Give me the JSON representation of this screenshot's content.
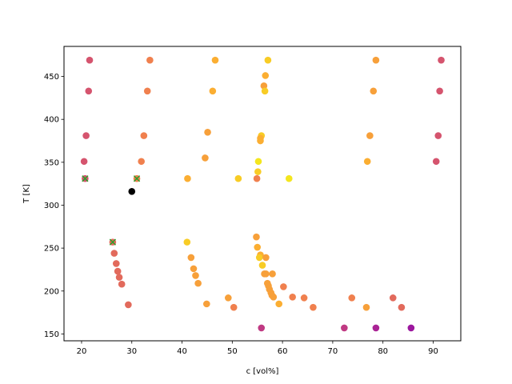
{
  "chart_data": {
    "type": "scatter",
    "title": "",
    "xlabel": "c [vol%]",
    "ylabel": "T [K]",
    "xlim": [
      16.5,
      95.5
    ],
    "ylim": [
      142,
      485
    ],
    "xticks": [
      20,
      30,
      40,
      50,
      60,
      70,
      80,
      90
    ],
    "yticks": [
      150,
      200,
      250,
      300,
      350,
      400,
      450
    ],
    "grid": false,
    "legend": "none",
    "colormap": "plasma",
    "points": [
      {
        "x": 21.6,
        "y": 469,
        "color": "#d5546e"
      },
      {
        "x": 33.6,
        "y": 469,
        "color": "#f0804e"
      },
      {
        "x": 46.6,
        "y": 469,
        "color": "#fbae32"
      },
      {
        "x": 57.1,
        "y": 469,
        "color": "#f8cc25"
      },
      {
        "x": 78.6,
        "y": 469,
        "color": "#f7a03a"
      },
      {
        "x": 91.6,
        "y": 469,
        "color": "#d5546e"
      },
      {
        "x": 56.6,
        "y": 451,
        "color": "#fbae32"
      },
      {
        "x": 56.3,
        "y": 439,
        "color": "#f7a03a"
      },
      {
        "x": 21.4,
        "y": 433,
        "color": "#d5546e"
      },
      {
        "x": 33.1,
        "y": 433,
        "color": "#f0804e"
      },
      {
        "x": 46.1,
        "y": 433,
        "color": "#fbae32"
      },
      {
        "x": 56.5,
        "y": 433,
        "color": "#f8cc25"
      },
      {
        "x": 78.1,
        "y": 433,
        "color": "#f7a03a"
      },
      {
        "x": 91.3,
        "y": 433,
        "color": "#d5546e"
      },
      {
        "x": 45.1,
        "y": 385,
        "color": "#f7a03a"
      },
      {
        "x": 20.9,
        "y": 381,
        "color": "#d5546e"
      },
      {
        "x": 32.4,
        "y": 381,
        "color": "#f0804e"
      },
      {
        "x": 55.8,
        "y": 381,
        "color": "#f8cc25"
      },
      {
        "x": 77.4,
        "y": 381,
        "color": "#f7a03a"
      },
      {
        "x": 91.0,
        "y": 381,
        "color": "#d5546e"
      },
      {
        "x": 55.6,
        "y": 378,
        "color": "#fbae32"
      },
      {
        "x": 55.6,
        "y": 375,
        "color": "#fbae32"
      },
      {
        "x": 44.6,
        "y": 355,
        "color": "#f7a03a"
      },
      {
        "x": 20.5,
        "y": 351,
        "color": "#d5546e"
      },
      {
        "x": 31.9,
        "y": 351,
        "color": "#f0804e"
      },
      {
        "x": 55.2,
        "y": 351,
        "color": "#f4e61e"
      },
      {
        "x": 76.9,
        "y": 351,
        "color": "#fbae32"
      },
      {
        "x": 90.6,
        "y": 351,
        "color": "#d5546e"
      },
      {
        "x": 55.1,
        "y": 339,
        "color": "#f8cc25"
      },
      {
        "x": 20.7,
        "y": 331,
        "color": "#d5546e"
      },
      {
        "x": 31.0,
        "y": 331,
        "color": "#f0804e"
      },
      {
        "x": 41.1,
        "y": 331,
        "color": "#fbae32"
      },
      {
        "x": 51.2,
        "y": 331,
        "color": "#f8cc25"
      },
      {
        "x": 54.9,
        "y": 331,
        "color": "#f0804e"
      },
      {
        "x": 61.3,
        "y": 331,
        "color": "#f4e61e"
      },
      {
        "x": 30.0,
        "y": 316,
        "color": "#000000"
      },
      {
        "x": 54.8,
        "y": 263,
        "color": "#f7a03a"
      },
      {
        "x": 26.2,
        "y": 257,
        "color": "#e26a5c"
      },
      {
        "x": 41.0,
        "y": 257,
        "color": "#f8cc25"
      },
      {
        "x": 55.0,
        "y": 251,
        "color": "#fbae32"
      },
      {
        "x": 26.5,
        "y": 244,
        "color": "#e26a5c"
      },
      {
        "x": 55.6,
        "y": 242,
        "color": "#fbae32"
      },
      {
        "x": 41.8,
        "y": 239,
        "color": "#f7a03a"
      },
      {
        "x": 55.4,
        "y": 239,
        "color": "#f8cc25"
      },
      {
        "x": 56.7,
        "y": 239,
        "color": "#f7a03a"
      },
      {
        "x": 26.9,
        "y": 232,
        "color": "#e26a5c"
      },
      {
        "x": 56.0,
        "y": 230,
        "color": "#f8cc25"
      },
      {
        "x": 42.3,
        "y": 226,
        "color": "#f7a03a"
      },
      {
        "x": 27.2,
        "y": 223,
        "color": "#e26a5c"
      },
      {
        "x": 56.4,
        "y": 220,
        "color": "#f7a03a"
      },
      {
        "x": 56.7,
        "y": 220,
        "color": "#f7a03a"
      },
      {
        "x": 58.0,
        "y": 220,
        "color": "#f7a03a"
      },
      {
        "x": 42.7,
        "y": 218,
        "color": "#f7a03a"
      },
      {
        "x": 27.5,
        "y": 216,
        "color": "#e26a5c"
      },
      {
        "x": 43.2,
        "y": 209,
        "color": "#f7a03a"
      },
      {
        "x": 57.0,
        "y": 209,
        "color": "#f7a03a"
      },
      {
        "x": 28.0,
        "y": 208,
        "color": "#e26a5c"
      },
      {
        "x": 57.2,
        "y": 206,
        "color": "#f7a03a"
      },
      {
        "x": 60.2,
        "y": 205,
        "color": "#f0804e"
      },
      {
        "x": 57.4,
        "y": 202,
        "color": "#f7a03a"
      },
      {
        "x": 57.7,
        "y": 198,
        "color": "#f7a03a"
      },
      {
        "x": 57.9,
        "y": 195,
        "color": "#f7a03a"
      },
      {
        "x": 58.2,
        "y": 193,
        "color": "#f7a03a"
      },
      {
        "x": 62.0,
        "y": 193,
        "color": "#f0804e"
      },
      {
        "x": 49.2,
        "y": 192,
        "color": "#f7a03a"
      },
      {
        "x": 64.3,
        "y": 192,
        "color": "#f0804e"
      },
      {
        "x": 73.8,
        "y": 192,
        "color": "#f0804e"
      },
      {
        "x": 82.0,
        "y": 192,
        "color": "#e26a5c"
      },
      {
        "x": 59.3,
        "y": 185,
        "color": "#fbae32"
      },
      {
        "x": 29.3,
        "y": 184,
        "color": "#e26a5c"
      },
      {
        "x": 44.9,
        "y": 185,
        "color": "#f7a03a"
      },
      {
        "x": 50.3,
        "y": 181,
        "color": "#f0804e"
      },
      {
        "x": 66.1,
        "y": 181,
        "color": "#f0804e"
      },
      {
        "x": 76.7,
        "y": 181,
        "color": "#f7a03a"
      },
      {
        "x": 83.7,
        "y": 181,
        "color": "#e26a5c"
      },
      {
        "x": 55.8,
        "y": 157,
        "color": "#c03a83"
      },
      {
        "x": 72.3,
        "y": 157,
        "color": "#c03a83"
      },
      {
        "x": 78.6,
        "y": 157,
        "color": "#aa2395"
      },
      {
        "x": 85.6,
        "y": 157,
        "color": "#9c179e"
      }
    ],
    "x_markers": [
      {
        "x": 20.7,
        "y": 331,
        "color": "#2ca02c"
      },
      {
        "x": 31.0,
        "y": 331,
        "color": "#2ca02c"
      },
      {
        "x": 26.2,
        "y": 257,
        "color": "#2ca02c"
      }
    ]
  }
}
